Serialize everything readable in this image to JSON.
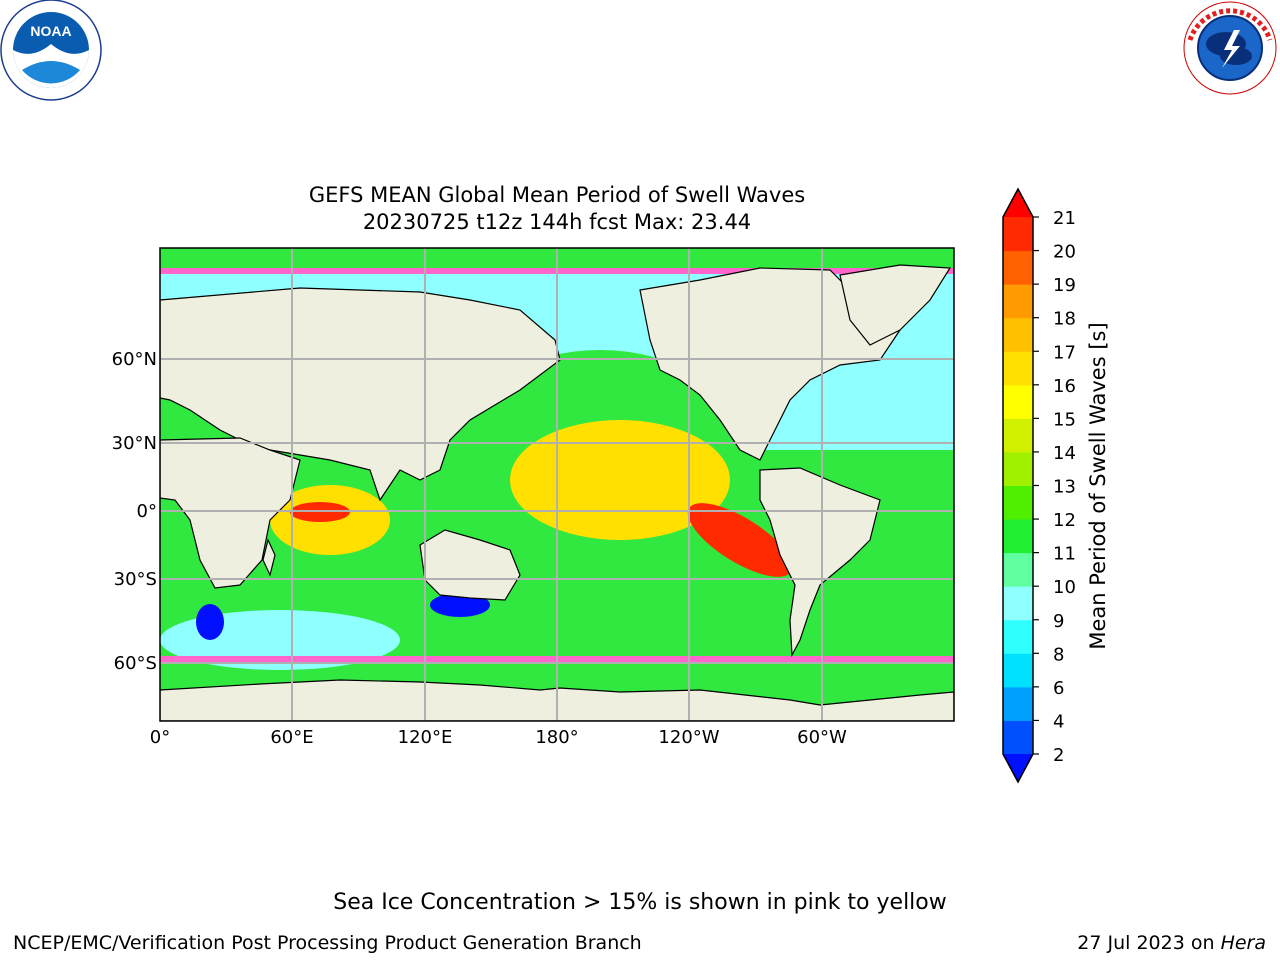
{
  "title": "GEFS MEAN Global Mean Period of Swell Waves",
  "subtitle": "20230725 t12z 144h fcst   Max: 23.44",
  "colorbar": {
    "label": "Mean Period of Swell Waves [s]",
    "ticks": [
      "2",
      "4",
      "6",
      "8",
      "9",
      "10",
      "11",
      "12",
      "13",
      "14",
      "15",
      "16",
      "17",
      "18",
      "19",
      "20",
      "21"
    ],
    "colors": [
      "#0050ff",
      "#00a0ff",
      "#00e0ff",
      "#30ffff",
      "#90ffff",
      "#60ffa0",
      "#20ee30",
      "#50ee00",
      "#a0f000",
      "#d0f000",
      "#ffff00",
      "#ffe000",
      "#ffc000",
      "#ff9a00",
      "#ff6000",
      "#ff2a00"
    ],
    "under_color": "#0010ff",
    "over_color": "#ff0000"
  },
  "map": {
    "lon_labels": [
      "0°",
      "60°E",
      "120°E",
      "180°",
      "120°W",
      "60°W"
    ],
    "lat_labels": [
      "60°N",
      "30°N",
      "0°",
      "30°S",
      "60°S"
    ],
    "land_color": "#efefdf",
    "ocean_colors": [
      "#30e840",
      "#90ffff",
      "#ffe000",
      "#ff2a00",
      "#0010ff",
      "#ff66cc"
    ]
  },
  "footer": {
    "ice_note": "Sea Ice Concentration > 15% is shown in pink to yellow",
    "credit": "NCEP/EMC/Verification Post Processing Product Generation Branch",
    "date_prefix": "27 Jul 2023 on ",
    "date_host": "Hera"
  },
  "logos": {
    "noaa_text": "NOAA",
    "noaa_ring": "NATIONAL OCEANIC AND ATMOSPHERIC ADMINISTRATION · U.S. DEPARTMENT OF COMMERCE",
    "nws_ring": "NATIONAL WEATHER SERVICE"
  }
}
